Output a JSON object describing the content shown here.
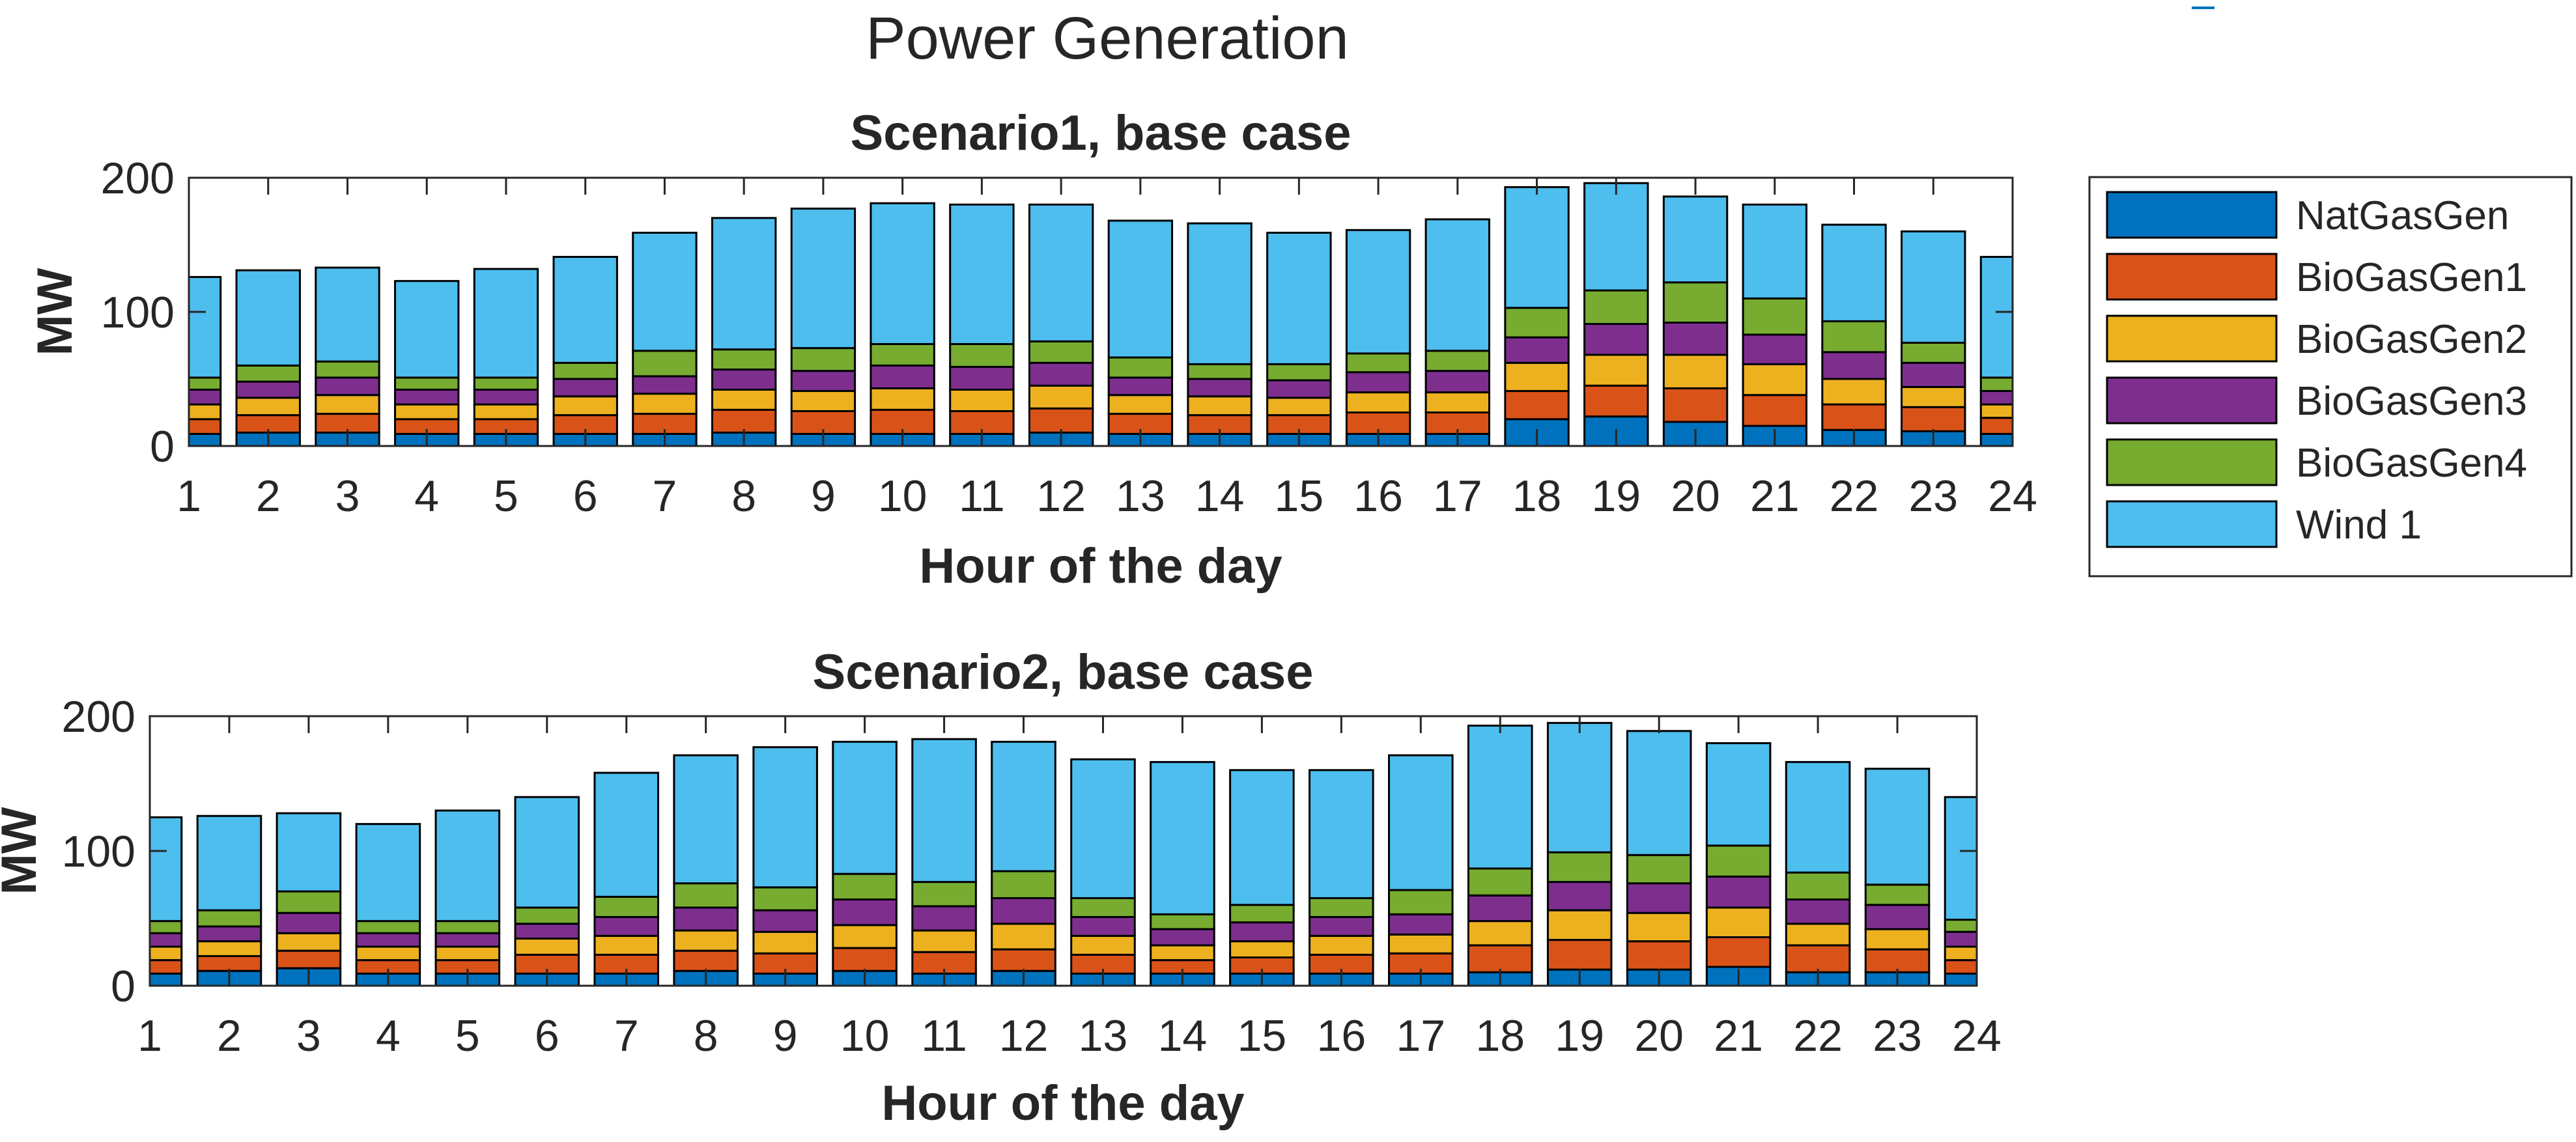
{
  "figure": {
    "title": "Power Generation"
  },
  "legend": {
    "entries": [
      "NatGasGen",
      "BioGasGen1",
      "BioGasGen2",
      "BioGasGen3",
      "BioGasGen4",
      "Wind 1"
    ],
    "placement": "right"
  },
  "colors": {
    "NatGasGen": "#0072BD",
    "BioGasGen1": "#D95319",
    "BioGasGen2": "#EDB120",
    "BioGasGen3": "#7E2F8E",
    "BioGasGen4": "#77AC30",
    "Wind 1": "#4DBEEE"
  },
  "chart_data": [
    {
      "type": "bar",
      "stacked": true,
      "title": "Scenario1, base case",
      "xlabel": "Hour of the day",
      "ylabel": "MW",
      "categories": [
        "1",
        "2",
        "3",
        "4",
        "5",
        "6",
        "7",
        "8",
        "9",
        "10",
        "11",
        "12",
        "13",
        "14",
        "15",
        "16",
        "17",
        "18",
        "19",
        "20",
        "21",
        "22",
        "23",
        "24"
      ],
      "ylim": [
        0,
        200
      ],
      "yticks": [
        0,
        100,
        200
      ],
      "grid": false,
      "series": [
        {
          "name": "NatGasGen",
          "values": [
            9,
            10,
            10,
            9,
            9,
            9,
            9,
            10,
            9,
            9,
            9,
            10,
            9,
            9,
            9,
            9,
            9,
            20,
            22,
            18,
            15,
            12,
            11,
            9
          ]
        },
        {
          "name": "BioGasGen1",
          "values": [
            11,
            13,
            14,
            11,
            11,
            14,
            15,
            17,
            17,
            18,
            17,
            18,
            15,
            14,
            14,
            16,
            16,
            21,
            23,
            25,
            23,
            19,
            18,
            12
          ]
        },
        {
          "name": "BioGasGen2",
          "values": [
            11,
            13,
            14,
            11,
            11,
            14,
            15,
            15,
            15,
            16,
            16,
            17,
            14,
            14,
            13,
            15,
            15,
            21,
            23,
            25,
            23,
            19,
            15,
            10
          ]
        },
        {
          "name": "BioGasGen3",
          "values": [
            11,
            12,
            13,
            11,
            11,
            13,
            13,
            15,
            15,
            17,
            17,
            17,
            13,
            13,
            13,
            15,
            16,
            19,
            23,
            24,
            22,
            20,
            18,
            10
          ]
        },
        {
          "name": "BioGasGen4",
          "values": [
            9,
            12,
            12,
            9,
            9,
            12,
            19,
            15,
            17,
            16,
            17,
            16,
            15,
            11,
            12,
            14,
            15,
            22,
            25,
            30,
            27,
            23,
            15,
            10
          ]
        },
        {
          "name": "Wind 1",
          "values": [
            75,
            71,
            70,
            72,
            81,
            79,
            88,
            98,
            104,
            105,
            104,
            102,
            102,
            105,
            98,
            92,
            98,
            90,
            80,
            64,
            70,
            72,
            83,
            90
          ]
        }
      ]
    },
    {
      "type": "bar",
      "stacked": true,
      "title": "Scenario2, base case",
      "xlabel": "Hour of the day",
      "ylabel": "MW",
      "categories": [
        "1",
        "2",
        "3",
        "4",
        "5",
        "6",
        "7",
        "8",
        "9",
        "10",
        "11",
        "12",
        "13",
        "14",
        "15",
        "16",
        "17",
        "18",
        "19",
        "20",
        "21",
        "22",
        "23",
        "24"
      ],
      "ylim": [
        0,
        200
      ],
      "yticks": [
        0,
        100,
        200
      ],
      "grid": false,
      "series": [
        {
          "name": "NatGasGen",
          "values": [
            9,
            11,
            13,
            9,
            9,
            9,
            9,
            11,
            9,
            11,
            9,
            11,
            9,
            9,
            9,
            9,
            9,
            10,
            12,
            12,
            14,
            10,
            10,
            9
          ]
        },
        {
          "name": "BioGasGen1",
          "values": [
            10,
            11,
            13,
            10,
            10,
            14,
            14,
            15,
            15,
            17,
            16,
            16,
            14,
            10,
            12,
            14,
            15,
            20,
            22,
            21,
            22,
            20,
            17,
            10
          ]
        },
        {
          "name": "BioGasGen2",
          "values": [
            10,
            11,
            13,
            10,
            10,
            12,
            14,
            15,
            16,
            17,
            16,
            19,
            14,
            11,
            12,
            14,
            14,
            18,
            22,
            21,
            22,
            16,
            15,
            10
          ]
        },
        {
          "name": "BioGasGen3",
          "values": [
            10,
            11,
            15,
            10,
            10,
            11,
            14,
            17,
            16,
            19,
            18,
            19,
            14,
            12,
            14,
            14,
            15,
            19,
            21,
            22,
            23,
            18,
            18,
            11
          ]
        },
        {
          "name": "BioGasGen4",
          "values": [
            9,
            12,
            16,
            9,
            9,
            12,
            15,
            18,
            17,
            19,
            18,
            20,
            14,
            11,
            13,
            14,
            18,
            20,
            22,
            21,
            23,
            20,
            15,
            9
          ]
        },
        {
          "name": "Wind 1",
          "values": [
            77,
            70,
            58,
            72,
            82,
            82,
            92,
            95,
            104,
            98,
            106,
            96,
            103,
            113,
            100,
            95,
            100,
            106,
            96,
            92,
            76,
            82,
            86,
            91
          ]
        }
      ]
    }
  ]
}
